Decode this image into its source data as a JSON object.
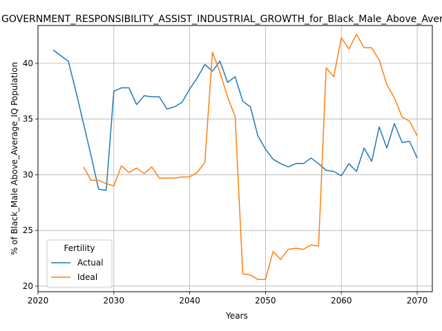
{
  "chart_data": {
    "type": "line",
    "title": "GOVERNMENT_RESPONSIBILITY_ASSIST_INDUSTRIAL_GROWTH_for_Black_Male_Above_Average_IQ",
    "xlabel": "Years",
    "ylabel": "% of Black_Male Above_Average_IQ Population",
    "xlim": [
      2020,
      2072
    ],
    "ylim": [
      19.5,
      43.4
    ],
    "xticks": [
      2020,
      2030,
      2040,
      2050,
      2060,
      2070
    ],
    "yticks": [
      20,
      25,
      30,
      35,
      40
    ],
    "grid": true,
    "legend": {
      "title": "Fertility",
      "position": "lower-left"
    },
    "series": [
      {
        "name": "Actual",
        "color": "#1f77b4",
        "points": [
          [
            2022,
            41.2
          ],
          [
            2023,
            40.7
          ],
          [
            2024,
            40.2
          ],
          [
            2025,
            37.5
          ],
          [
            2026,
            34.6
          ],
          [
            2027,
            31.7
          ],
          [
            2028,
            28.7
          ],
          [
            2029,
            28.6
          ],
          [
            2030,
            37.5
          ],
          [
            2031,
            37.8
          ],
          [
            2032,
            37.8
          ],
          [
            2033,
            36.3
          ],
          [
            2034,
            37.1
          ],
          [
            2035,
            37.0
          ],
          [
            2036,
            37.0
          ],
          [
            2037,
            35.9
          ],
          [
            2038,
            36.1
          ],
          [
            2039,
            36.5
          ],
          [
            2040,
            37.7
          ],
          [
            2041,
            38.7
          ],
          [
            2042,
            39.9
          ],
          [
            2043,
            39.3
          ],
          [
            2044,
            40.2
          ],
          [
            2045,
            38.3
          ],
          [
            2046,
            38.8
          ],
          [
            2047,
            36.6
          ],
          [
            2048,
            36.1
          ],
          [
            2049,
            33.5
          ],
          [
            2050,
            32.3
          ],
          [
            2051,
            31.4
          ],
          [
            2052,
            31.0
          ],
          [
            2053,
            30.7
          ],
          [
            2054,
            31.0
          ],
          [
            2055,
            31.0
          ],
          [
            2056,
            31.5
          ],
          [
            2057,
            31.0
          ],
          [
            2058,
            30.4
          ],
          [
            2059,
            30.3
          ],
          [
            2060,
            29.9
          ],
          [
            2061,
            31.0
          ],
          [
            2062,
            30.3
          ],
          [
            2063,
            32.4
          ],
          [
            2064,
            31.2
          ],
          [
            2065,
            34.3
          ],
          [
            2066,
            32.4
          ],
          [
            2067,
            34.6
          ],
          [
            2068,
            32.9
          ],
          [
            2069,
            33.0
          ],
          [
            2070,
            31.5
          ]
        ]
      },
      {
        "name": "Ideal",
        "color": "#ff7f0e",
        "points": [
          [
            2026,
            30.7
          ],
          [
            2027,
            29.5
          ],
          [
            2028,
            29.5
          ],
          [
            2029,
            29.2
          ],
          [
            2030,
            29.0
          ],
          [
            2031,
            30.8
          ],
          [
            2032,
            30.2
          ],
          [
            2033,
            30.6
          ],
          [
            2034,
            30.1
          ],
          [
            2035,
            30.7
          ],
          [
            2036,
            29.7
          ],
          [
            2037,
            29.7
          ],
          [
            2038,
            29.7
          ],
          [
            2039,
            29.8
          ],
          [
            2040,
            29.8
          ],
          [
            2041,
            30.2
          ],
          [
            2042,
            31.1
          ],
          [
            2043,
            41.0
          ],
          [
            2044,
            39.2
          ],
          [
            2045,
            37.0
          ],
          [
            2046,
            35.2
          ],
          [
            2047,
            21.1
          ],
          [
            2048,
            21.0
          ],
          [
            2049,
            20.6
          ],
          [
            2050,
            20.6
          ],
          [
            2051,
            23.1
          ],
          [
            2052,
            22.4
          ],
          [
            2053,
            23.3
          ],
          [
            2054,
            23.4
          ],
          [
            2055,
            23.3
          ],
          [
            2056,
            23.7
          ],
          [
            2057,
            23.6
          ],
          [
            2058,
            39.6
          ],
          [
            2059,
            38.8
          ],
          [
            2060,
            42.3
          ],
          [
            2061,
            41.3
          ],
          [
            2062,
            42.6
          ],
          [
            2063,
            41.4
          ],
          [
            2064,
            41.4
          ],
          [
            2065,
            40.3
          ],
          [
            2066,
            38.1
          ],
          [
            2067,
            36.9
          ],
          [
            2068,
            35.2
          ],
          [
            2069,
            34.8
          ],
          [
            2070,
            33.5
          ]
        ]
      }
    ]
  }
}
